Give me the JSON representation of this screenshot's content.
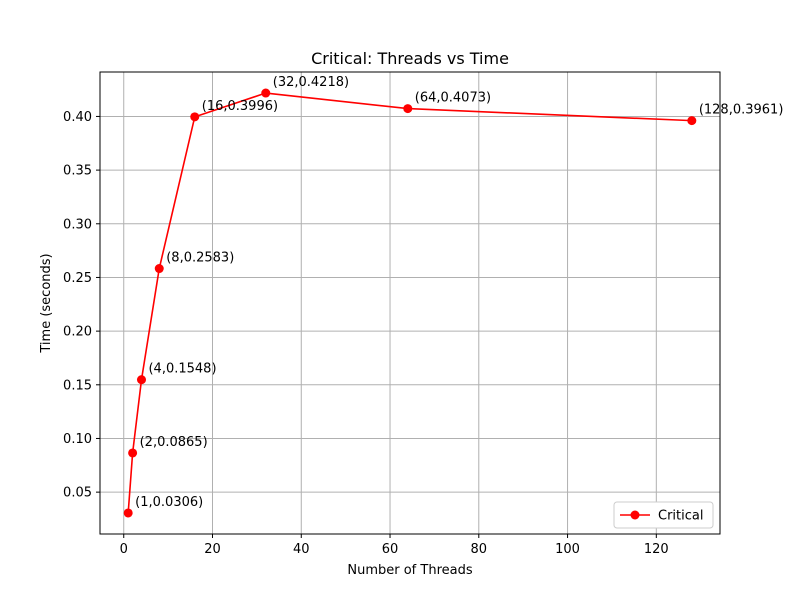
{
  "chart_data": {
    "type": "line",
    "title": "Critical: Threads vs Time",
    "xlabel": "Number of Threads",
    "ylabel": "Time (seconds)",
    "xlim": [
      -5.35,
      134.35
    ],
    "ylim": [
      0.011,
      0.4414
    ],
    "x_ticks": [
      0,
      20,
      40,
      60,
      80,
      100,
      120
    ],
    "y_ticks": [
      0.05,
      0.1,
      0.15,
      0.2,
      0.25,
      0.3,
      0.35,
      0.4
    ],
    "grid": true,
    "legend_position": "lower-right",
    "series": [
      {
        "name": "Critical",
        "color": "#ff0000",
        "marker": "circle",
        "x": [
          1,
          2,
          4,
          8,
          16,
          32,
          64,
          128
        ],
        "y": [
          0.0306,
          0.0865,
          0.1548,
          0.2583,
          0.3996,
          0.4218,
          0.4073,
          0.3961
        ],
        "labels": [
          "(1,0.0306)",
          "(2,0.0865)",
          "(4,0.1548)",
          "(8,0.2583)",
          "(16,0.3996)",
          "(32,0.4218)",
          "(64,0.4073)",
          "(128,0.3961)"
        ]
      }
    ]
  }
}
